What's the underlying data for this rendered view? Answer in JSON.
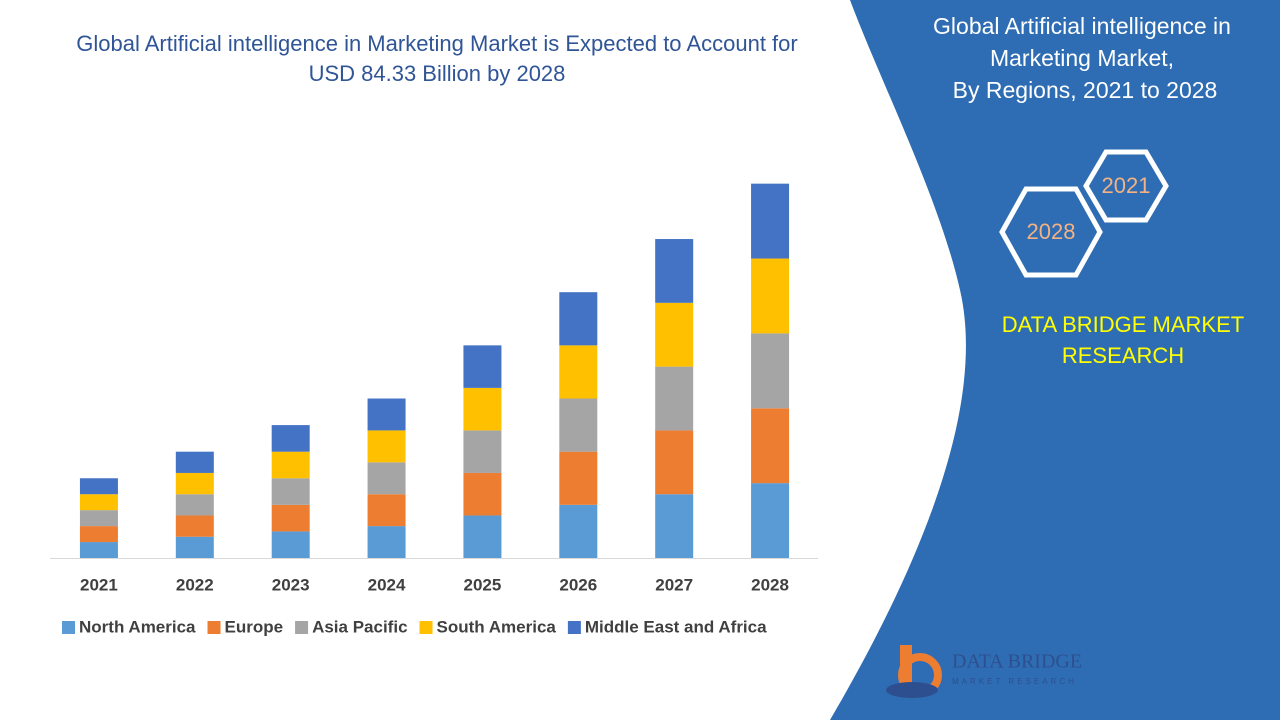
{
  "chart_data": {
    "type": "stacked-bar",
    "title": [
      "Global Artificial intelligence in Marketing Market is Expected to Account for",
      "USD 84.33 Billion by 2028"
    ],
    "categories": [
      "2021",
      "2022",
      "2023",
      "2024",
      "2025",
      "2026",
      "2027",
      "2028"
    ],
    "series": [
      {
        "name": "North America",
        "color": "#5b9bd5",
        "values": [
          3.6,
          4.8,
          6.0,
          7.2,
          9.6,
          12.0,
          14.4,
          16.9
        ]
      },
      {
        "name": "Europe",
        "color": "#ed7d31",
        "values": [
          3.6,
          4.8,
          6.0,
          7.2,
          9.6,
          12.0,
          14.4,
          16.9
        ]
      },
      {
        "name": "Asia Pacific",
        "color": "#a5a5a5",
        "values": [
          3.6,
          4.8,
          6.0,
          7.2,
          9.6,
          12.0,
          14.4,
          16.9
        ]
      },
      {
        "name": "South America",
        "color": "#ffc000",
        "values": [
          3.6,
          4.8,
          6.0,
          7.2,
          9.6,
          12.0,
          14.4,
          16.9
        ]
      },
      {
        "name": "Middle East and Africa",
        "color": "#4472c4",
        "values": [
          3.6,
          4.8,
          6.0,
          7.2,
          9.6,
          12.0,
          14.4,
          16.9
        ]
      }
    ],
    "ylim": [
      0,
      100
    ],
    "legend": "bottom"
  },
  "panel": {
    "title": [
      "Global Artificial intelligence in",
      "Marketing Market,",
      "By Regions, 2021 to 2028"
    ],
    "hex_labels": [
      "2021",
      "2028"
    ],
    "brand": [
      "DATA BRIDGE MARKET",
      "RESEARCH"
    ],
    "logo": [
      "DATA BRIDGE",
      "MARKET RESEARCH"
    ]
  }
}
